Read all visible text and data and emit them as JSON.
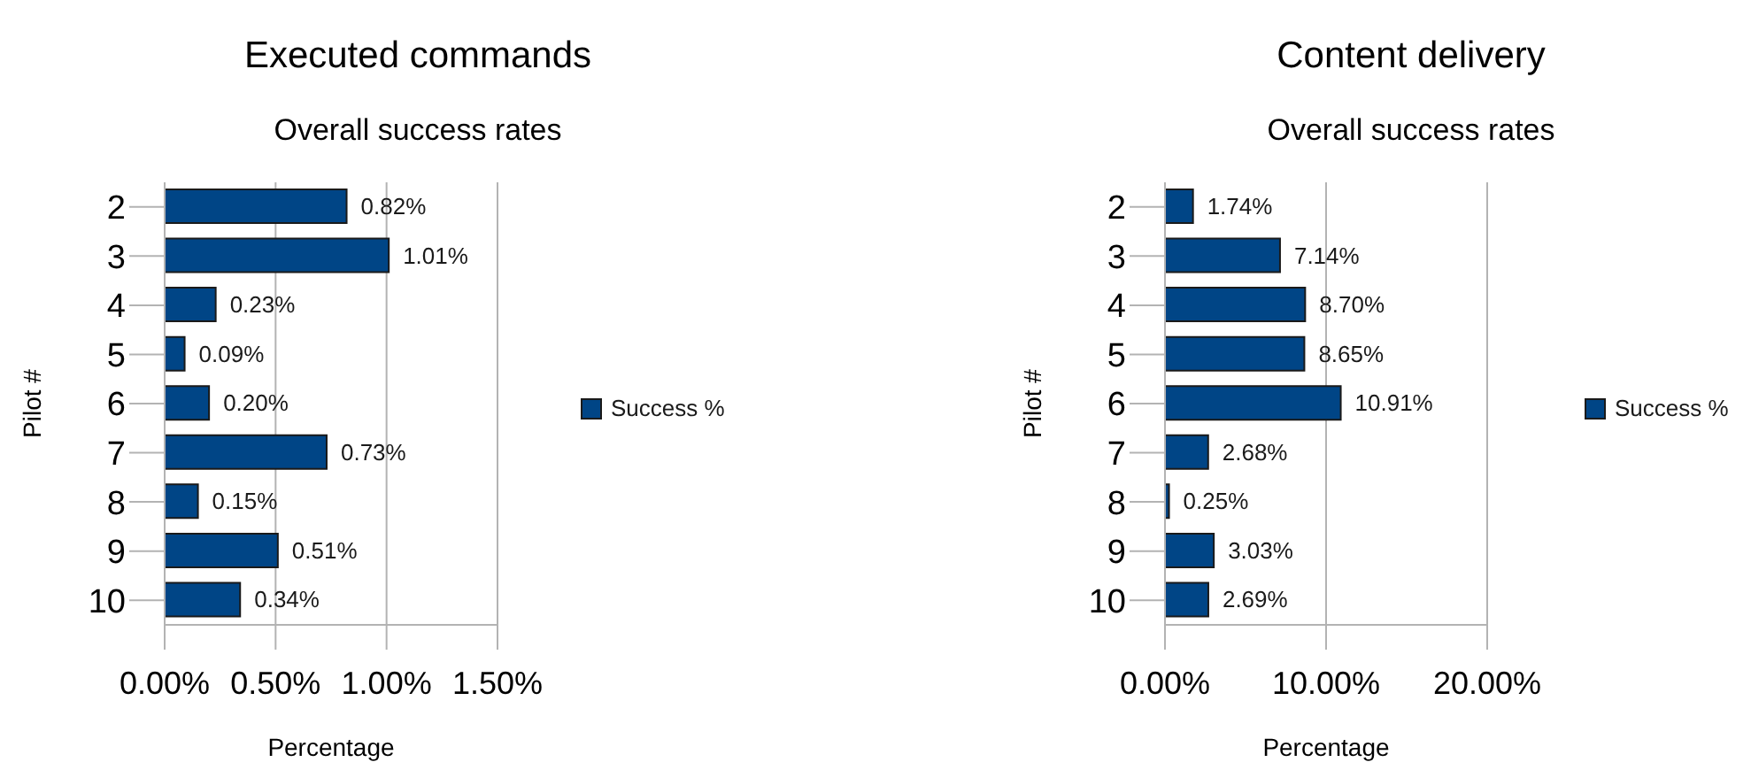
{
  "chart_data": [
    {
      "type": "bar",
      "orientation": "horizontal",
      "title": "Executed commands",
      "subtitle": "Overall success rates",
      "xlabel": "Percentage",
      "ylabel": "Pilot #",
      "categories": [
        "2",
        "3",
        "4",
        "5",
        "6",
        "7",
        "8",
        "9",
        "10"
      ],
      "series": [
        {
          "name": "Success %",
          "color": "#004586",
          "values": [
            0.82,
            1.01,
            0.23,
            0.09,
            0.2,
            0.73,
            0.15,
            0.51,
            0.34
          ],
          "value_labels": [
            "0.82%",
            "1.01%",
            "0.23%",
            "0.09%",
            "0.20%",
            "0.73%",
            "0.15%",
            "0.51%",
            "0.34%"
          ]
        }
      ],
      "xlim": [
        0,
        1.5
      ],
      "xticks": [
        {
          "value": 0,
          "label": "0.00%"
        },
        {
          "value": 0.5,
          "label": "0.50%"
        },
        {
          "value": 1,
          "label": "1.00%"
        },
        {
          "value": 1.5,
          "label": "1.50%"
        }
      ],
      "grid": "x",
      "legend": "right"
    },
    {
      "type": "bar",
      "orientation": "horizontal",
      "title": "Content delivery",
      "subtitle": "Overall success rates",
      "xlabel": "Percentage",
      "ylabel": "Pilot #",
      "categories": [
        "2",
        "3",
        "4",
        "5",
        "6",
        "7",
        "8",
        "9",
        "10"
      ],
      "series": [
        {
          "name": "Success %",
          "color": "#004586",
          "values": [
            1.74,
            7.14,
            8.7,
            8.65,
            10.91,
            2.68,
            0.25,
            3.03,
            2.69
          ],
          "value_labels": [
            "1.74%",
            "7.14%",
            "8.70%",
            "8.65%",
            "10.91%",
            "2.68%",
            "0.25%",
            "3.03%",
            "2.69%"
          ]
        }
      ],
      "xlim": [
        0,
        20
      ],
      "xticks": [
        {
          "value": 0,
          "label": "0.00%"
        },
        {
          "value": 10,
          "label": "10.00%"
        },
        {
          "value": 20,
          "label": "20.00%"
        }
      ],
      "grid": "x",
      "legend": "right"
    }
  ]
}
